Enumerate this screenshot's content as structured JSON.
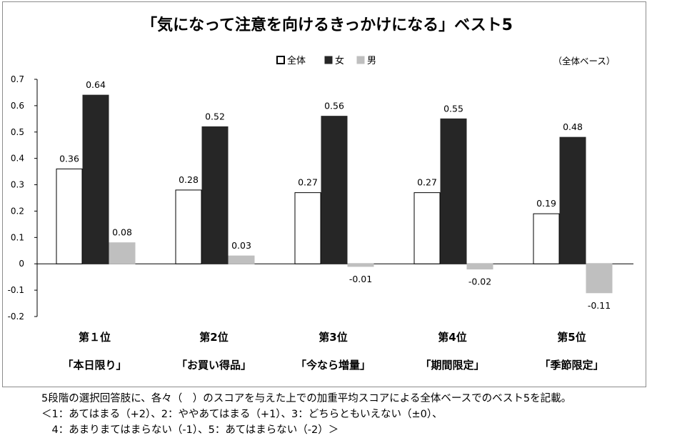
{
  "chart_data": {
    "type": "bar",
    "title": "「気になって注意を向けるきっかけになる」ベスト5",
    "base_note": "（全体ベース）",
    "categories": [
      {
        "rank": "第１位",
        "item": "「本日限り」"
      },
      {
        "rank": "第2位",
        "item": "「お買い得品」"
      },
      {
        "rank": "第3位",
        "item": "「今なら増量」"
      },
      {
        "rank": "第4位",
        "item": "「期間限定」"
      },
      {
        "rank": "第5位",
        "item": "「季節限定」"
      }
    ],
    "series": [
      {
        "name": "全体",
        "color": "#ffffff",
        "stroke": "#000000",
        "values": [
          0.36,
          0.28,
          0.27,
          0.27,
          0.19
        ],
        "labels": [
          "0.36",
          "0.28",
          "0.27",
          "0.27",
          "0.19"
        ]
      },
      {
        "name": "女",
        "color": "#262626",
        "stroke": "#262626",
        "values": [
          0.64,
          0.52,
          0.56,
          0.55,
          0.48
        ],
        "labels": [
          "0.64",
          "0.52",
          "0.56",
          "0.55",
          "0.48"
        ]
      },
      {
        "name": "男",
        "color": "#bfbfbf",
        "stroke": "#bfbfbf",
        "values": [
          0.08,
          0.03,
          -0.01,
          -0.02,
          -0.11
        ],
        "labels": [
          "0.08",
          "0.03",
          "-0.01",
          "-0.02",
          "-0.11"
        ]
      }
    ],
    "yticks": [
      "0.7",
      "0.6",
      "0.5",
      "0.4",
      "0.3",
      "0.2",
      "0.1",
      "0",
      "-0.1",
      "-0.2"
    ],
    "ylim": [
      -0.2,
      0.7
    ],
    "legend_position": "top-center",
    "grid": false
  },
  "notes": {
    "line1": "5段階の選択回答肢に、各々（　）のスコアを与えた上での加重平均スコアによる全体ベースでのベスト5を記載。",
    "line2": "＜1：あてはまる（+2）、2：ややあてはまる（+1）、3：どちらともいえない（±0）、",
    "line3": "　4：あまりまてはまらない（-1）、5：あてはまらない（-2）＞"
  }
}
